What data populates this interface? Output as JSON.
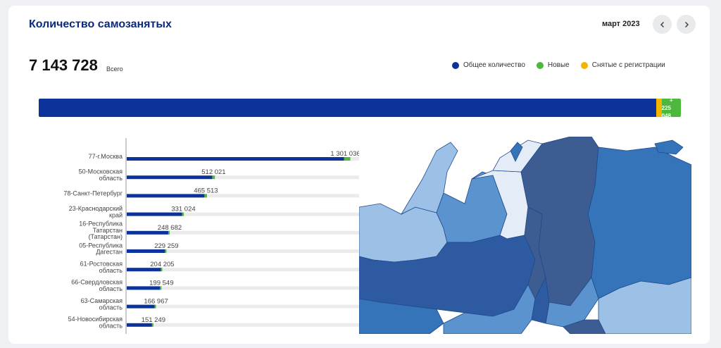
{
  "header": {
    "title": "Количество самозанятых",
    "period": "март 2023",
    "prev_icon": "chevron-left-icon",
    "next_icon": "chevron-right-icon"
  },
  "summary": {
    "total": "7 143 728",
    "total_label": "Всего",
    "new_sign": "+",
    "new_value": "225 048"
  },
  "legend": [
    {
      "label": "Общее количество",
      "color": "#0b3399"
    },
    {
      "label": "Новые",
      "color": "#4cb83c"
    },
    {
      "label": "Снятые с регистрации",
      "color": "#f4b400"
    }
  ],
  "stack": {
    "total_fraction": 0.962,
    "removed_fraction": 0.008,
    "new_fraction": 0.03
  },
  "chart_data": {
    "type": "bar",
    "orientation": "horizontal",
    "xlim": [
      0,
      1400000
    ],
    "categories": [
      [
        "77-г.Москва"
      ],
      [
        "50-Московская",
        "область"
      ],
      [
        "78-Санкт-Петербург"
      ],
      [
        "23-Краснодарский",
        "край"
      ],
      [
        "16-Республика",
        "Татарстан",
        "(Татарстан)"
      ],
      [
        "05-Республика",
        "Дагестан"
      ],
      [
        "61-Ростовская",
        "область"
      ],
      [
        "66-Свердловская",
        "область"
      ],
      [
        "63-Самарская",
        "область"
      ],
      [
        "54-Новосибирская",
        "область"
      ]
    ],
    "values": [
      1301036,
      512021,
      465513,
      331024,
      248682,
      229259,
      204205,
      199549,
      166967,
      151249
    ],
    "value_labels": [
      "1 301 036",
      "512 021",
      "465 513",
      "331 024",
      "248 682",
      "229 259",
      "204 205",
      "199 549",
      "166 967",
      "151 249"
    ],
    "new_values": [
      38000,
      16000,
      15000,
      11000,
      8000,
      5000,
      6000,
      6000,
      4000,
      4000
    ],
    "colors": {
      "total": "#0b3399",
      "new": "#4cb83c",
      "track": "#ebebeb"
    }
  },
  "map": {
    "colors": [
      "#e4ecf8",
      "#9dc1e6",
      "#5b93cf",
      "#3574b8",
      "#2d5aa0",
      "#3d5c91",
      "#1f4a8f"
    ]
  }
}
